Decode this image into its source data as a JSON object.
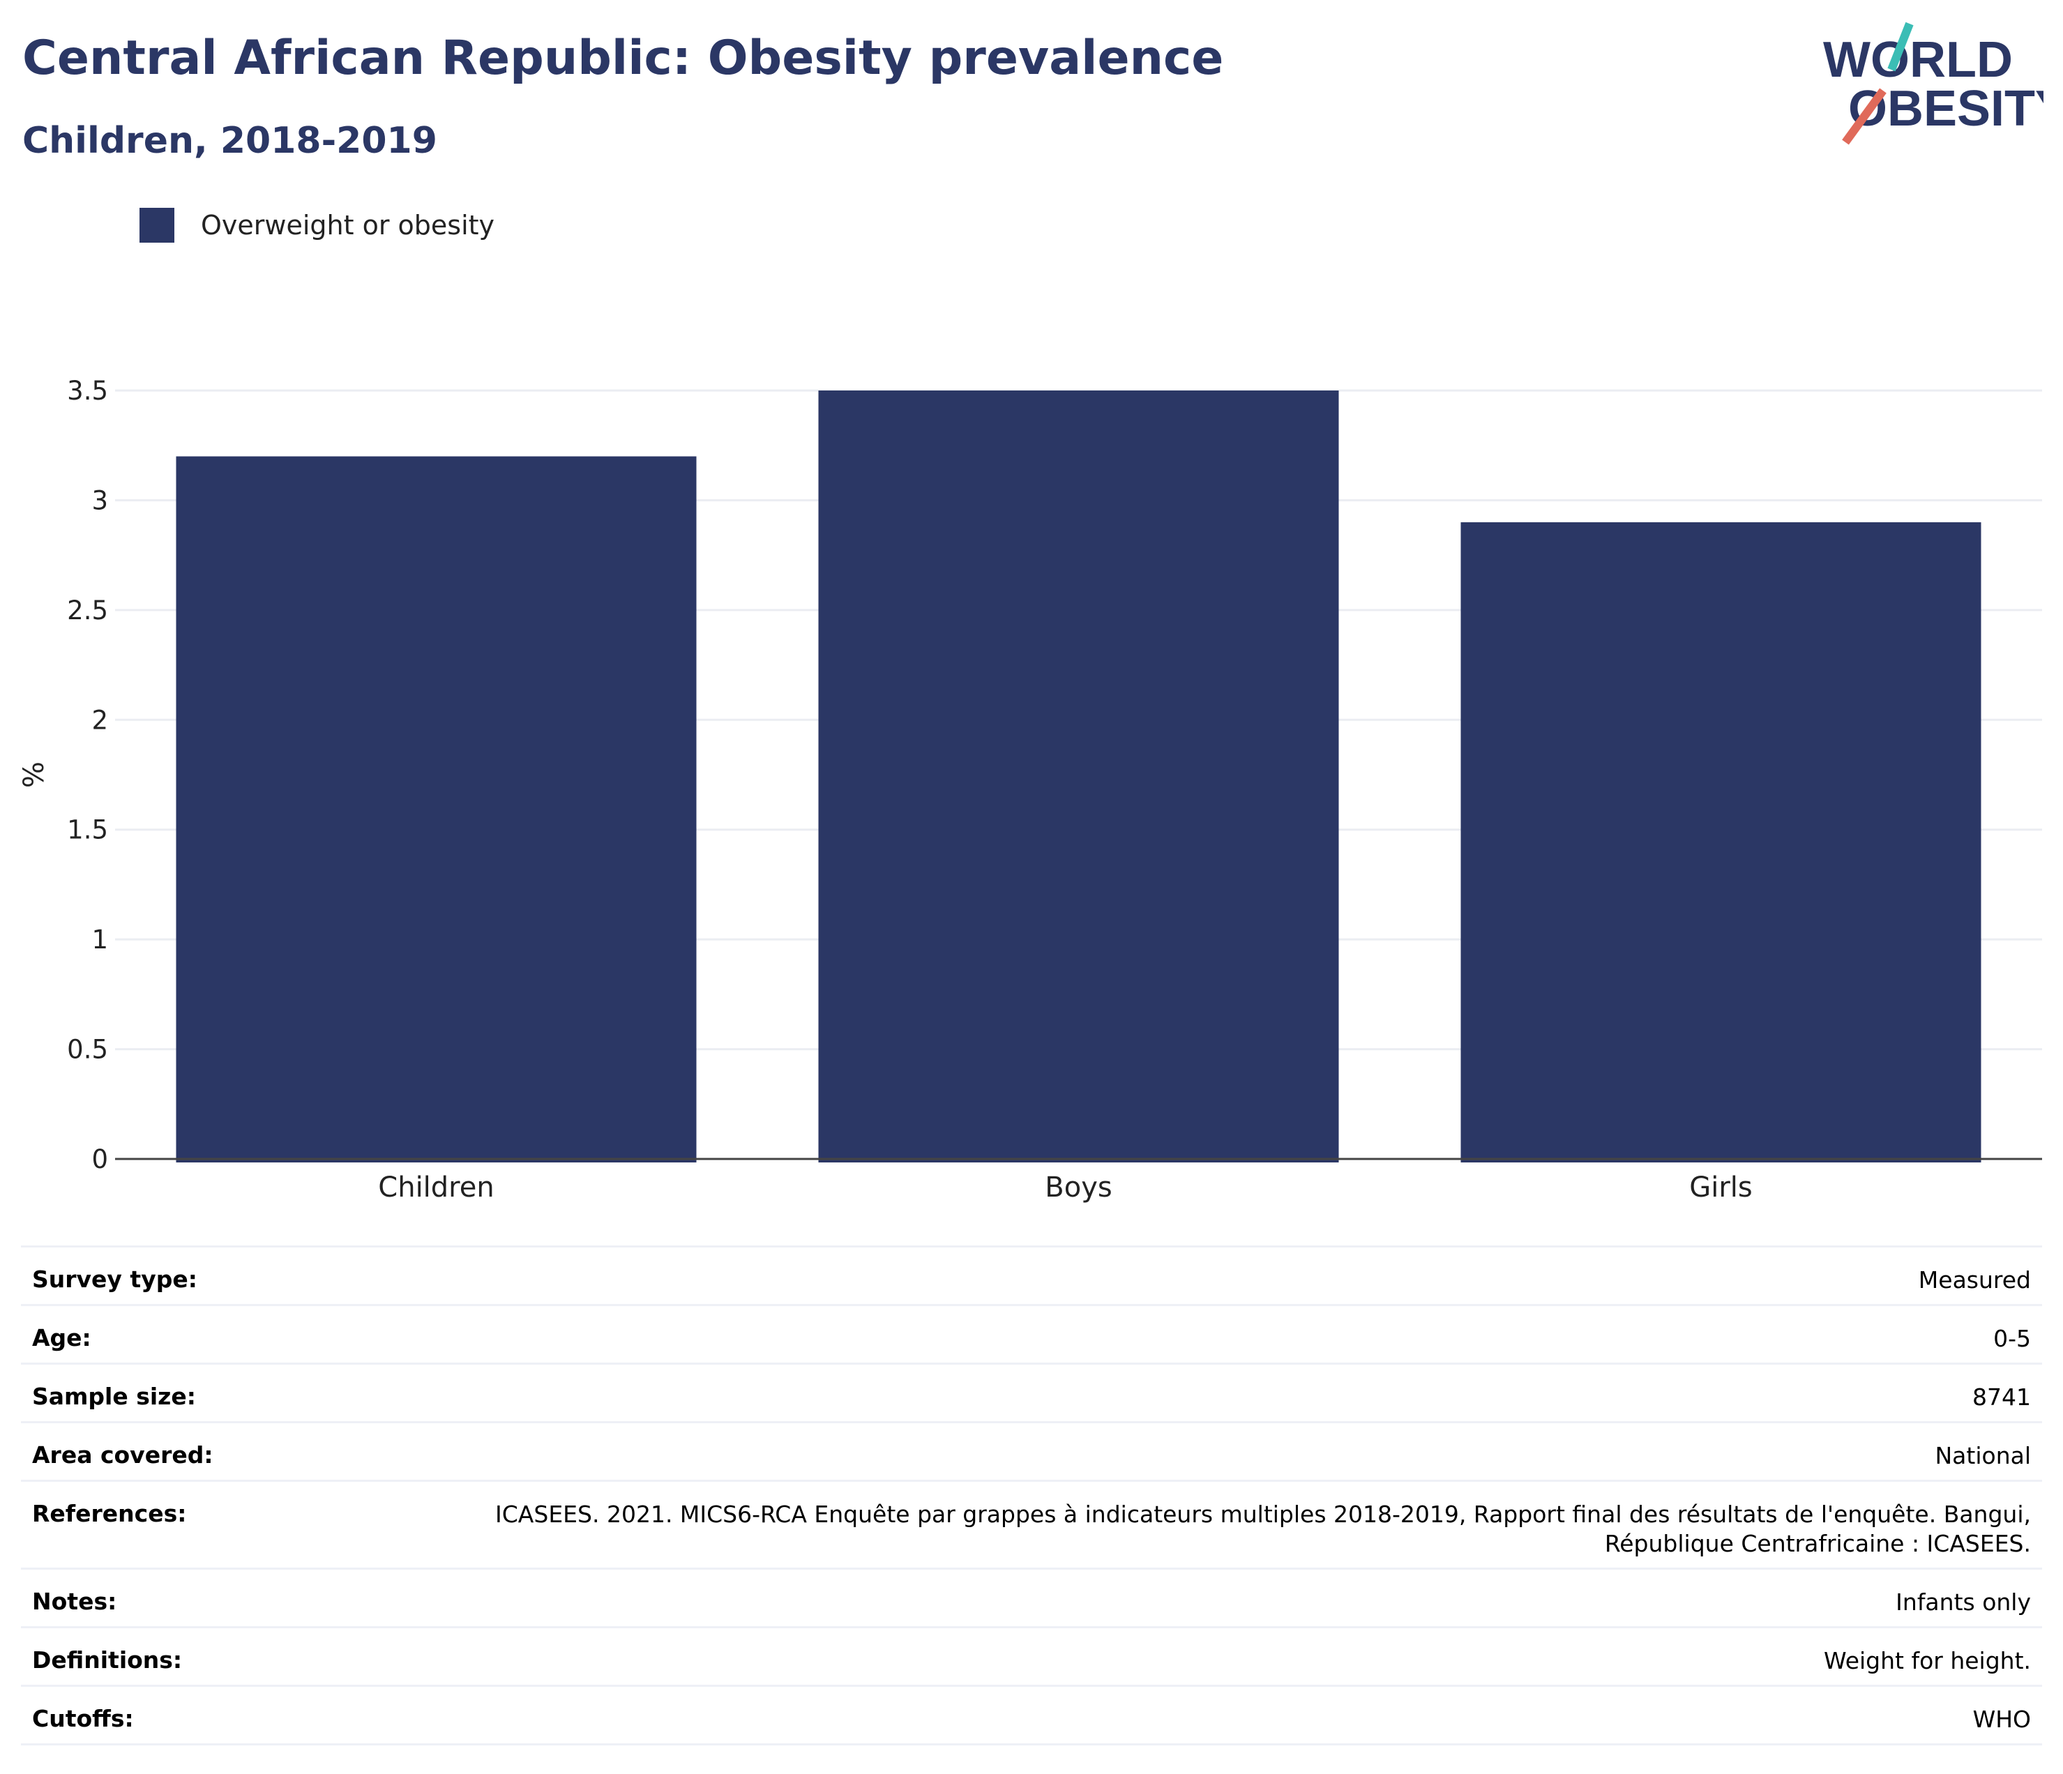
{
  "header": {
    "title": "Central African Republic: Obesity prevalence",
    "subtitle": "Children, 2018-2019"
  },
  "logo": {
    "line1": "WORLD",
    "line2": "OBESITY"
  },
  "colors": {
    "bar": "#2b3765",
    "title": "#2b3765",
    "logo_teal": "#3bbdb5",
    "logo_red": "#e06a5a"
  },
  "chart_data": {
    "type": "bar",
    "categories": [
      "Children",
      "Boys",
      "Girls"
    ],
    "series": [
      {
        "name": "Overweight or obesity",
        "values": [
          3.2,
          3.5,
          2.9
        ]
      }
    ],
    "xlabel": "",
    "ylabel": "%",
    "ylim": [
      0,
      3.5
    ],
    "yticks": [
      0,
      0.5,
      1,
      1.5,
      2,
      2.5,
      3,
      3.5
    ],
    "ytick_labels": [
      "0",
      "0.5",
      "1",
      "1.5",
      "2",
      "2.5",
      "3",
      "3.5"
    ],
    "grid": true,
    "legend": "top-left"
  },
  "info": [
    {
      "key": "Survey type:",
      "value": "Measured"
    },
    {
      "key": "Age:",
      "value": "0-5"
    },
    {
      "key": "Sample size:",
      "value": "8741"
    },
    {
      "key": "Area covered:",
      "value": "National"
    },
    {
      "key": "References:",
      "value": "ICASEES. 2021. MICS6-RCA Enquête par grappes à indicateurs multiples 2018-2019, Rapport final des résultats de l'enquête. Bangui, République Centrafricaine : ICASEES."
    },
    {
      "key": "Notes:",
      "value": "Infants only"
    },
    {
      "key": "Definitions:",
      "value": "Weight for height."
    },
    {
      "key": "Cutoffs:",
      "value": "WHO"
    }
  ]
}
